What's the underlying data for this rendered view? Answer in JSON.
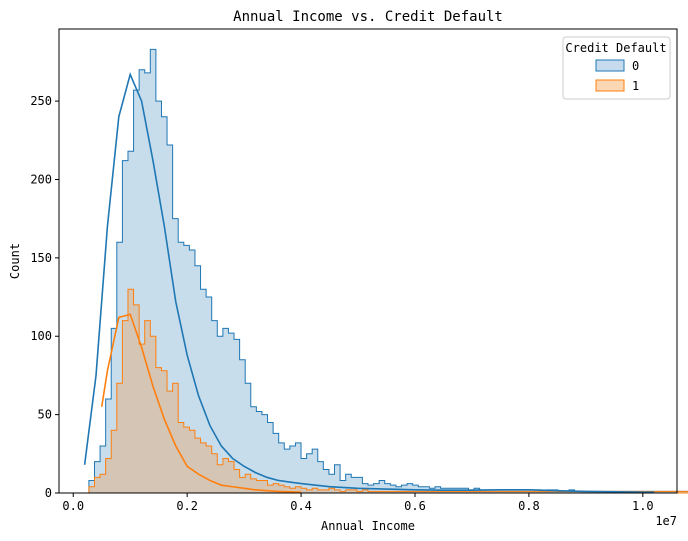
{
  "chart_data": {
    "type": "histogram",
    "title": "Annual Income vs. Credit Default",
    "xlabel": "Annual Income",
    "ylabel": "Count",
    "x_offset_label": "1e7",
    "xlim": [
      -0.025,
      1.06
    ],
    "ylim": [
      0,
      296
    ],
    "x_ticks": [
      0.0,
      0.2,
      0.4,
      0.6,
      0.8,
      1.0
    ],
    "x_tick_labels": [
      "0.0",
      "0.2",
      "0.4",
      "0.6",
      "0.8",
      "1.0"
    ],
    "y_ticks": [
      0,
      50,
      100,
      150,
      200,
      250
    ],
    "y_tick_labels": [
      "0",
      "50",
      "100",
      "150",
      "200",
      "250"
    ],
    "grid": false,
    "legend": {
      "title": "Credit Default",
      "placement": "top-right",
      "entries": [
        "0",
        "1"
      ]
    },
    "bin_start": 0.0275,
    "bin_width": 0.0098,
    "series": [
      {
        "name": "0",
        "color": "#1f77b4",
        "fill": "#c6dcee",
        "counts": [
          8,
          20,
          30,
          60,
          105,
          160,
          212,
          218,
          257,
          270,
          268,
          283,
          250,
          240,
          222,
          175,
          160,
          158,
          155,
          145,
          130,
          125,
          110,
          100,
          105,
          102,
          98,
          85,
          70,
          55,
          52,
          50,
          45,
          38,
          32,
          28,
          30,
          32,
          22,
          25,
          28,
          20,
          15,
          12,
          18,
          8,
          12,
          10,
          10,
          6,
          5,
          6,
          8,
          6,
          5,
          4,
          5,
          6,
          5,
          4,
          4,
          3,
          4,
          3,
          3,
          3,
          3,
          3,
          2,
          3,
          2,
          2,
          2,
          2,
          2,
          2,
          2,
          2,
          2,
          2,
          2,
          1,
          2,
          2,
          1,
          1,
          2,
          1,
          1,
          1,
          1,
          1,
          1,
          1,
          1,
          1,
          1,
          1,
          1,
          1,
          1,
          1,
          1,
          1,
          1,
          1,
          1,
          1,
          1,
          1,
          1,
          1,
          1,
          1,
          1,
          1,
          1,
          1,
          1,
          1,
          1,
          1,
          1,
          1,
          1,
          1,
          1,
          1,
          1,
          1,
          1,
          1,
          1,
          1,
          1,
          1,
          1,
          1,
          1,
          1,
          1,
          1,
          1,
          1,
          1,
          1,
          1,
          1,
          1,
          1,
          1,
          1,
          1,
          1,
          1,
          1,
          1,
          1,
          1,
          1,
          1,
          1,
          1,
          1,
          1,
          1,
          1,
          1,
          1,
          1,
          1,
          1,
          1,
          1,
          1,
          1,
          1,
          1,
          1,
          1,
          1,
          1,
          1,
          1,
          1,
          1,
          1,
          1,
          1,
          1,
          1,
          1,
          1,
          1,
          1,
          1,
          1,
          1,
          1,
          1,
          1,
          1,
          1,
          1,
          1,
          1,
          1,
          1,
          1,
          1,
          1,
          1,
          1,
          1,
          1,
          1,
          1,
          1,
          1,
          1,
          1,
          1,
          1,
          1,
          1,
          1,
          1,
          1,
          1,
          1,
          1,
          1,
          1,
          1,
          1,
          1,
          1,
          1,
          1,
          1,
          1,
          1,
          1,
          1,
          1,
          1,
          1,
          1,
          1,
          1,
          1,
          1,
          1,
          1,
          1,
          1
        ],
        "kde_x": [
          0.02,
          0.04,
          0.06,
          0.08,
          0.1,
          0.12,
          0.14,
          0.16,
          0.18,
          0.2,
          0.22,
          0.24,
          0.26,
          0.28,
          0.3,
          0.32,
          0.34,
          0.36,
          0.38,
          0.4,
          0.45,
          0.5,
          0.55,
          0.6,
          0.65,
          0.7,
          0.75,
          0.8,
          0.85,
          0.9,
          0.95,
          1.0,
          1.02
        ],
        "kde_y": [
          18,
          75,
          170,
          240,
          267,
          250,
          212,
          170,
          122,
          88,
          62,
          43,
          30,
          22,
          17,
          13,
          10,
          8,
          7,
          6,
          4,
          3,
          2.5,
          2,
          1.8,
          1.8,
          2,
          2,
          1.5,
          1,
          0.8,
          0.5,
          0.5
        ]
      },
      {
        "name": "1",
        "color": "#ff7f0e",
        "fill": "#fcd7b4",
        "counts": [
          4,
          10,
          12,
          22,
          40,
          70,
          110,
          130,
          120,
          95,
          110,
          100,
          80,
          78,
          65,
          70,
          45,
          42,
          40,
          35,
          32,
          30,
          25,
          18,
          22,
          20,
          15,
          10,
          12,
          9,
          8,
          8,
          5,
          6,
          5,
          4,
          3,
          4,
          3,
          2,
          3,
          2,
          2,
          3,
          2,
          1,
          2,
          2,
          1,
          2,
          1,
          1,
          1,
          1,
          1,
          1,
          1,
          1,
          1,
          1,
          1,
          1,
          1,
          1,
          1,
          1,
          1,
          1,
          1,
          1,
          1,
          1,
          1,
          1,
          1,
          1,
          1,
          1,
          1,
          1,
          1,
          1,
          1,
          1,
          1,
          1,
          1,
          1,
          1,
          1,
          1,
          1,
          1,
          1,
          1,
          1,
          1,
          1,
          1,
          1,
          1,
          1,
          1,
          1,
          1,
          1,
          1,
          1,
          1,
          1,
          1,
          1,
          1,
          1,
          1,
          1,
          1,
          1,
          1,
          1,
          1,
          1,
          1,
          1,
          1,
          1,
          1,
          1,
          1,
          1,
          1,
          1,
          1,
          1,
          1,
          1,
          1,
          1,
          1,
          1,
          1,
          1,
          1,
          1,
          1,
          1,
          1,
          1,
          1,
          1,
          1,
          1,
          1,
          1,
          1,
          1,
          1,
          1,
          1,
          1,
          1,
          1,
          1,
          1,
          1,
          1,
          1,
          1,
          1,
          1,
          1,
          1,
          1,
          1,
          1,
          1,
          1,
          1,
          1,
          1,
          1,
          1,
          1,
          1,
          1,
          1,
          1,
          1,
          1,
          1,
          1,
          1,
          1,
          1,
          1,
          1,
          1,
          1,
          1,
          1,
          1,
          1,
          1,
          1,
          1,
          1,
          1,
          1,
          1,
          1,
          1,
          1,
          1,
          1,
          1,
          1,
          1,
          1,
          1,
          1,
          1,
          1,
          1,
          1,
          1,
          1,
          1,
          1,
          1,
          1,
          1,
          1,
          1,
          1,
          1,
          1,
          1,
          1,
          1,
          1,
          1,
          1,
          1,
          1,
          1,
          1,
          1,
          1,
          1,
          1,
          1,
          1,
          1,
          1,
          1,
          1
        ],
        "kde_x": [
          0.05,
          0.06,
          0.08,
          0.1,
          0.12,
          0.14,
          0.16,
          0.18,
          0.2,
          0.22,
          0.24,
          0.26,
          0.28,
          0.3,
          0.32,
          0.34,
          0.36,
          0.38,
          0.4
        ],
        "kde_y": [
          55,
          78,
          112,
          114,
          93,
          68,
          47,
          30,
          17,
          12,
          8,
          5,
          4,
          3,
          2,
          1.5,
          1,
          0.8,
          0.5
        ]
      }
    ]
  }
}
